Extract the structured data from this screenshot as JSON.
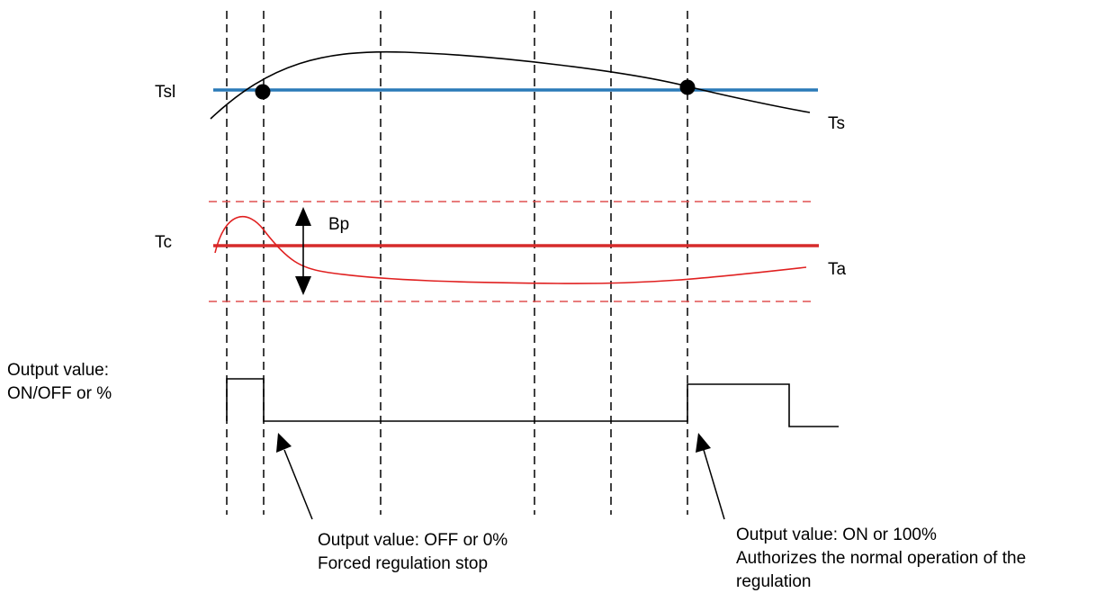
{
  "labels": {
    "tsl": "Tsl",
    "ts": "Ts",
    "tc": "Tc",
    "bp": "Bp",
    "ta": "Ta",
    "output_axis_line1": "Output value:",
    "output_axis_line2": "ON/OFF or %"
  },
  "annotations": {
    "off": {
      "line1": "Output value: OFF or 0%",
      "line2": "Forced regulation stop"
    },
    "on": {
      "line1": "Output value: ON or 100%",
      "line2": "Authorizes the normal operation of the",
      "line3": "regulation"
    }
  },
  "colors": {
    "threshold_line": "#2a7ab8",
    "setpoint_line": "#d62b2b",
    "band_dashed": "#e05050",
    "ambient_curve": "#e02020",
    "black": "#000000"
  }
}
